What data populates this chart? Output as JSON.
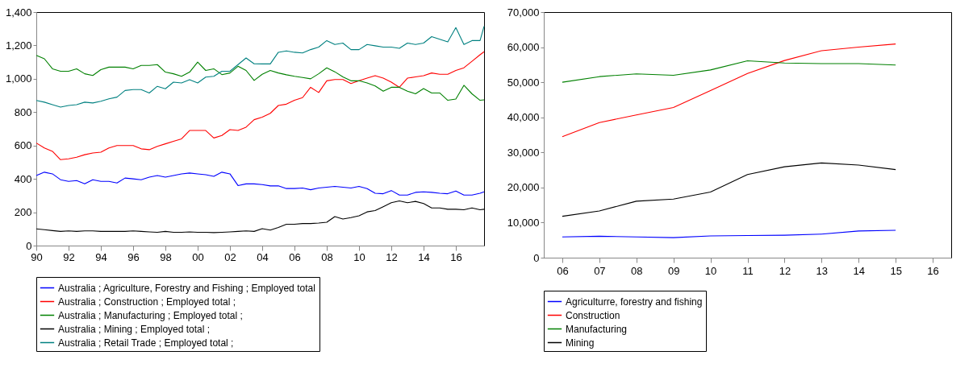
{
  "chart_data": [
    {
      "type": "line",
      "x": [
        1990,
        1990.5,
        1991,
        1991.5,
        1992,
        1992.5,
        1993,
        1993.5,
        1994,
        1994.5,
        1995,
        1995.5,
        1996,
        1996.5,
        1997,
        1997.5,
        1998,
        1998.5,
        1999,
        1999.5,
        2000,
        2000.5,
        2001,
        2001.5,
        2002,
        2002.5,
        2003,
        2003.5,
        2004,
        2004.5,
        2005,
        2005.5,
        2006,
        2006.5,
        2007,
        2007.5,
        2008,
        2008.5,
        2009,
        2009.5,
        2010,
        2010.5,
        2011,
        2011.5,
        2012,
        2012.5,
        2013,
        2013.5,
        2014,
        2014.5,
        2015,
        2015.5,
        2016,
        2016.5,
        2017,
        2017.5,
        2017.75
      ],
      "xlim": [
        1990,
        2017.75
      ],
      "xticks": [
        {
          "value": 1990,
          "label": "90"
        },
        {
          "value": 1992,
          "label": "92"
        },
        {
          "value": 1994,
          "label": "94"
        },
        {
          "value": 1996,
          "label": "96"
        },
        {
          "value": 1998,
          "label": "98"
        },
        {
          "value": 2000,
          "label": "00"
        },
        {
          "value": 2002,
          "label": "02"
        },
        {
          "value": 2004,
          "label": "04"
        },
        {
          "value": 2006,
          "label": "06"
        },
        {
          "value": 2008,
          "label": "08"
        },
        {
          "value": 2010,
          "label": "10"
        },
        {
          "value": 2012,
          "label": "12"
        },
        {
          "value": 2014,
          "label": "14"
        },
        {
          "value": 2016,
          "label": "16"
        }
      ],
      "ylim": [
        0,
        1400
      ],
      "yticks": [
        0,
        200,
        400,
        600,
        800,
        {
          "value": 1000,
          "label": "1,000"
        },
        {
          "value": 1200,
          "label": "1,200"
        },
        {
          "value": 1400,
          "label": "1,400"
        }
      ],
      "legend": "bottom",
      "grid": false,
      "series": [
        {
          "name": "Australia ; Agriculture, Forestry and Fishing ; Employed total",
          "color": "#0000ff",
          "values": [
            420,
            440,
            430,
            395,
            385,
            390,
            370,
            395,
            385,
            385,
            375,
            405,
            400,
            395,
            410,
            420,
            410,
            420,
            430,
            435,
            430,
            425,
            415,
            440,
            430,
            360,
            370,
            370,
            366,
            358,
            358,
            342,
            342,
            345,
            335,
            345,
            350,
            355,
            350,
            345,
            355,
            342,
            314,
            311,
            330,
            303,
            303,
            319,
            322,
            319,
            314,
            311,
            327,
            303,
            303,
            314,
            322
          ]
        },
        {
          "name": "Australia ; Construction ; Employed total ;",
          "color": "#ff0000",
          "values": [
            615,
            585,
            565,
            515,
            520,
            530,
            545,
            555,
            560,
            585,
            600,
            600,
            600,
            580,
            575,
            595,
            610,
            625,
            640,
            690,
            690,
            690,
            645,
            660,
            695,
            690,
            710,
            755,
            770,
            793,
            840,
            848,
            871,
            887,
            949,
            918,
            988,
            996,
            996,
            972,
            988,
            1004,
            1019,
            1004,
            980,
            949,
            1004,
            1011,
            1019,
            1035,
            1027,
            1027,
            1050,
            1066,
            1105,
            1144,
            1162
          ]
        },
        {
          "name": "Australia ; Manufacturing ; Employed total ;",
          "color": "#008000",
          "values": [
            1140,
            1120,
            1060,
            1045,
            1045,
            1060,
            1030,
            1020,
            1055,
            1070,
            1070,
            1070,
            1060,
            1080,
            1080,
            1085,
            1040,
            1030,
            1015,
            1040,
            1100,
            1050,
            1060,
            1025,
            1035,
            1075,
            1050,
            990,
            1027,
            1050,
            1035,
            1024,
            1015,
            1008,
            1000,
            1030,
            1066,
            1042,
            1011,
            988,
            988,
            975,
            957,
            926,
            949,
            949,
            926,
            910,
            941,
            915,
            915,
            871,
            879,
            961,
            910,
            871,
            874
          ]
        },
        {
          "name": "Australia ; Mining ; Employed total ;",
          "color": "#000000",
          "values": [
            100,
            95,
            90,
            85,
            88,
            85,
            88,
            88,
            85,
            85,
            85,
            85,
            88,
            85,
            82,
            80,
            85,
            80,
            80,
            82,
            80,
            80,
            78,
            80,
            82,
            85,
            88,
            85,
            101,
            93,
            109,
            128,
            128,
            132,
            132,
            135,
            140,
            174,
            159,
            168,
            179,
            202,
            210,
            233,
            257,
            268,
            257,
            265,
            252,
            226,
            226,
            218,
            218,
            215,
            226,
            215,
            218
          ]
        },
        {
          "name": "Australia ; Retail Trade ; Employed total ;",
          "color": "#008080",
          "values": [
            870,
            860,
            845,
            830,
            840,
            845,
            860,
            855,
            865,
            880,
            890,
            930,
            935,
            935,
            915,
            955,
            940,
            980,
            975,
            995,
            975,
            1010,
            1015,
            1045,
            1045,
            1085,
            1125,
            1090,
            1089,
            1089,
            1159,
            1167,
            1159,
            1155,
            1175,
            1190,
            1229,
            1206,
            1214,
            1175,
            1175,
            1206,
            1198,
            1190,
            1190,
            1183,
            1214,
            1206,
            1214,
            1253,
            1237,
            1221,
            1307,
            1206,
            1229,
            1229,
            1315
          ]
        }
      ]
    },
    {
      "type": "line",
      "categories": [
        "06",
        "07",
        "08",
        "09",
        "10",
        "11",
        "12",
        "13",
        "14",
        "15",
        "16"
      ],
      "ylim": [
        0,
        70000
      ],
      "yticks": [
        0,
        {
          "value": 10000,
          "label": "10,000"
        },
        {
          "value": 20000,
          "label": "20,000"
        },
        {
          "value": 30000,
          "label": "30,000"
        },
        {
          "value": 40000,
          "label": "40,000"
        },
        {
          "value": 50000,
          "label": "50,000"
        },
        {
          "value": 60000,
          "label": "60,000"
        },
        {
          "value": 70000,
          "label": "70,000"
        }
      ],
      "legend": "bottom",
      "grid": false,
      "series": [
        {
          "name": "Agriculturre, forestry and fishing",
          "color": "#0000ff",
          "values": [
            5900,
            6100,
            5900,
            5700,
            6200,
            6300,
            6400,
            6700,
            7600,
            7800,
            null
          ]
        },
        {
          "name": "Construction",
          "color": "#ff0000",
          "values": [
            34500,
            38500,
            40700,
            42800,
            47600,
            52500,
            56200,
            59000,
            60000,
            60900,
            null
          ]
        },
        {
          "name": "Manufacturing",
          "color": "#008000",
          "values": [
            50000,
            51600,
            52400,
            52000,
            53500,
            56100,
            55500,
            55300,
            55300,
            54900,
            null
          ]
        },
        {
          "name": "Mining",
          "color": "#000000",
          "values": [
            11800,
            13300,
            16100,
            16700,
            18700,
            23700,
            25900,
            27000,
            26400,
            25100,
            null
          ]
        }
      ]
    }
  ]
}
